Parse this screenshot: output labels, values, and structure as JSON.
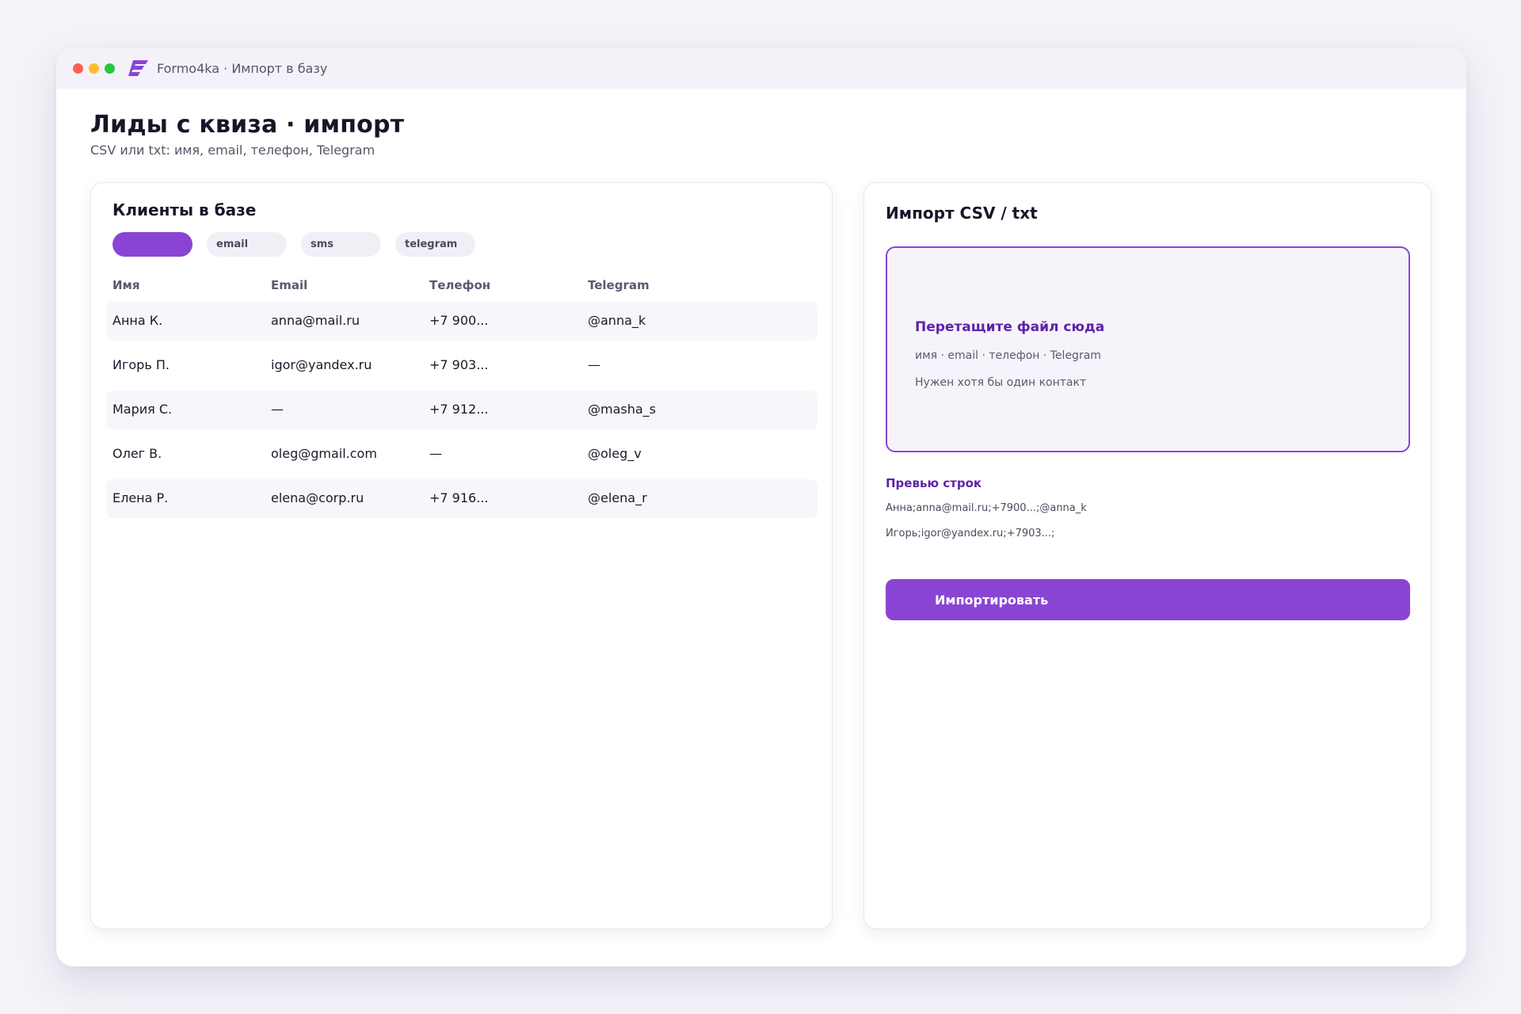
{
  "app": {
    "title": "Formo4ka · Импорт в базу",
    "logo": "formo4ka-logo",
    "accent": "#8a44d4"
  },
  "page": {
    "title": "Лиды с квиза · импорт",
    "subtitle": "CSV или txt: имя, email, телефон, Telegram"
  },
  "clients": {
    "title": "Клиенты в базе",
    "filters": [
      {
        "label": "",
        "active": true
      },
      {
        "label": "email",
        "active": false
      },
      {
        "label": "sms",
        "active": false
      },
      {
        "label": "telegram",
        "active": false
      }
    ],
    "columns": [
      "Имя",
      "Email",
      "Телефон",
      "Telegram"
    ],
    "rows": [
      [
        "Анна К.",
        "anna@mail.ru",
        "+7 900...",
        "@anna_k"
      ],
      [
        "Игорь П.",
        "igor@yandex.ru",
        "+7 903...",
        "—"
      ],
      [
        "Мария С.",
        "—",
        "+7 912...",
        "@masha_s"
      ],
      [
        "Олег В.",
        "oleg@gmail.com",
        "—",
        "@oleg_v"
      ],
      [
        "Елена Р.",
        "elena@corp.ru",
        "+7 916...",
        "@elena_r"
      ]
    ]
  },
  "import": {
    "title": "Импорт CSV / txt",
    "dropzone": {
      "title": "Перетащите файл сюда",
      "hint": "имя · email · телефон · Telegram",
      "note": "Нужен хотя бы один контакт"
    },
    "preview": {
      "title": "Превью строк",
      "lines": [
        "Анна;anna@mail.ru;+7900...;@anna_k",
        "Игорь;igor@yandex.ru;+7903...;"
      ]
    },
    "button_label": "Импортировать"
  }
}
